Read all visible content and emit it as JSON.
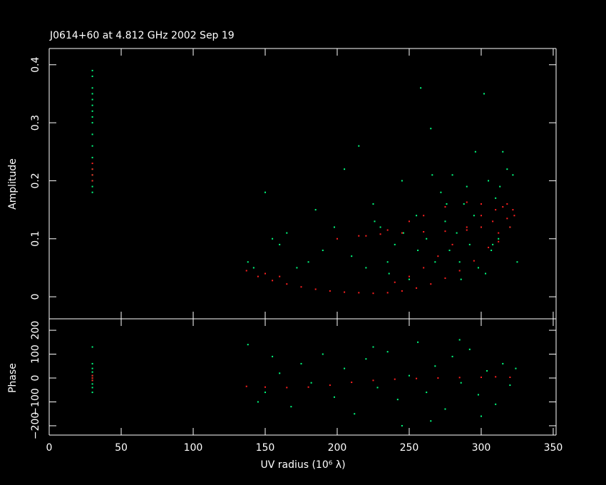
{
  "chart_data": [
    {
      "type": "scatter",
      "title": "J0614+60 at 4.812 GHz 2002 Sep 19",
      "y_label": "Amplitude",
      "ylim": [
        -0.038,
        0.428
      ],
      "yticks": [
        0,
        0.1,
        0.2,
        0.3,
        0.4
      ],
      "series": [
        {
          "color": "#00ff7f",
          "x": [
            30,
            30,
            30,
            30,
            30,
            30,
            30,
            30,
            30,
            30,
            30,
            30,
            30,
            30,
            30,
            30,
            30,
            138,
            142,
            150,
            155,
            160,
            165,
            172,
            180,
            185,
            190,
            198,
            205,
            210,
            215,
            220,
            225,
            230,
            235,
            240,
            245,
            250,
            255,
            258,
            262,
            265,
            268,
            272,
            275,
            278,
            280,
            283,
            285,
            288,
            290,
            292,
            295,
            298,
            300,
            302,
            305,
            307,
            310,
            312,
            315,
            318,
            320,
            322,
            325,
            303,
            308,
            313,
            296,
            286,
            276,
            266,
            256,
            246,
            236,
            226
          ],
          "values": [
            0.18,
            0.19,
            0.2,
            0.21,
            0.22,
            0.24,
            0.26,
            0.28,
            0.3,
            0.31,
            0.32,
            0.33,
            0.34,
            0.35,
            0.36,
            0.38,
            0.39,
            0.06,
            0.05,
            0.18,
            0.1,
            0.09,
            0.11,
            0.05,
            0.06,
            0.15,
            0.08,
            0.12,
            0.22,
            0.07,
            0.26,
            0.05,
            0.16,
            0.12,
            0.06,
            0.09,
            0.2,
            0.03,
            0.14,
            0.36,
            0.1,
            0.29,
            0.06,
            0.18,
            0.13,
            0.08,
            0.21,
            0.11,
            0.06,
            0.16,
            0.19,
            0.09,
            0.14,
            0.05,
            0.12,
            0.35,
            0.2,
            0.08,
            0.17,
            0.1,
            0.25,
            0.22,
            0.12,
            0.21,
            0.06,
            0.04,
            0.09,
            0.19,
            0.25,
            0.03,
            0.16,
            0.21,
            0.08,
            0.11,
            0.04,
            0.13
          ]
        },
        {
          "color": "#ff2020",
          "x": [
            30,
            30,
            30,
            30,
            137,
            145,
            155,
            165,
            175,
            185,
            195,
            205,
            215,
            225,
            235,
            245,
            255,
            265,
            275,
            285,
            295,
            305,
            312,
            318,
            322,
            323,
            320,
            312,
            200,
            215,
            230,
            245,
            260,
            275,
            290,
            300,
            308,
            315,
            318,
            310,
            300,
            290,
            280,
            270,
            260,
            250,
            240,
            150,
            160,
            260,
            275,
            290,
            300,
            250,
            235,
            220
          ],
          "values": [
            0.2,
            0.21,
            0.22,
            0.23,
            0.045,
            0.035,
            0.028,
            0.022,
            0.017,
            0.013,
            0.01,
            0.008,
            0.007,
            0.006,
            0.007,
            0.01,
            0.015,
            0.022,
            0.032,
            0.045,
            0.062,
            0.085,
            0.11,
            0.135,
            0.15,
            0.14,
            0.12,
            0.095,
            0.1,
            0.105,
            0.108,
            0.11,
            0.112,
            0.113,
            0.115,
            0.12,
            0.13,
            0.155,
            0.16,
            0.15,
            0.14,
            0.12,
            0.09,
            0.07,
            0.05,
            0.035,
            0.025,
            0.04,
            0.035,
            0.14,
            0.155,
            0.163,
            0.16,
            0.13,
            0.115,
            0.105
          ]
        }
      ]
    },
    {
      "type": "scatter",
      "x_label": "UV radius  (10⁶ λ)",
      "y_label": "Phase",
      "xlim": [
        0,
        352
      ],
      "xticks": [
        0,
        50,
        100,
        150,
        200,
        250,
        300,
        350
      ],
      "ylim": [
        -239,
        248
      ],
      "yticks": [
        {
          "value": -200,
          "label": "−200"
        },
        {
          "value": -100,
          "label": "−100"
        },
        0,
        100,
        200
      ],
      "series": [
        {
          "color": "#00ff7f",
          "x": [
            30,
            30,
            30,
            30,
            30,
            30,
            30,
            30,
            30,
            30,
            138,
            145,
            150,
            155,
            160,
            168,
            175,
            182,
            190,
            198,
            205,
            212,
            220,
            228,
            235,
            242,
            250,
            256,
            262,
            268,
            275,
            280,
            286,
            292,
            298,
            304,
            310,
            315,
            320,
            324,
            265,
            285,
            300,
            245,
            225
          ],
          "values": [
            -60,
            -40,
            -25,
            -10,
            0,
            10,
            25,
            40,
            60,
            130,
            140,
            -100,
            -60,
            90,
            20,
            -120,
            60,
            -20,
            100,
            -80,
            40,
            -150,
            80,
            -40,
            110,
            -90,
            10,
            150,
            -60,
            50,
            -130,
            90,
            -20,
            120,
            -70,
            30,
            -110,
            60,
            -30,
            40,
            -180,
            160,
            -160,
            -200,
            130
          ]
        },
        {
          "color": "#ff2020",
          "x": [
            30,
            30,
            30,
            137,
            150,
            165,
            180,
            195,
            210,
            225,
            240,
            255,
            270,
            285,
            300,
            310,
            320
          ],
          "values": [
            -10,
            0,
            10,
            -35,
            -38,
            -40,
            -38,
            -30,
            -18,
            -10,
            -5,
            -2,
            0,
            2,
            3,
            5,
            3
          ]
        }
      ]
    }
  ]
}
